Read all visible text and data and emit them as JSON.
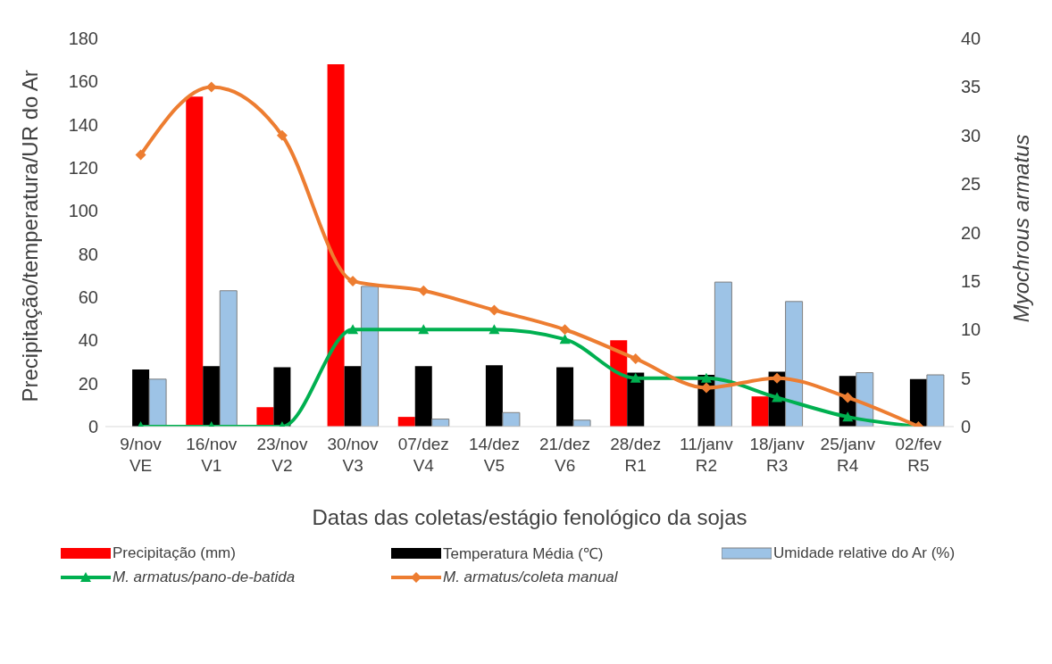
{
  "chart_data": {
    "type": "bar",
    "xlabel": "Datas das coletas/estágio fenológico da sojas",
    "ylabel": "Precipitação/temperatura/UR do Ar",
    "y2label": "Myochrous  armatus",
    "categories": [
      "9/nov\nVE",
      "16/nov\nV1",
      "23/nov\nV2",
      "30/nov\nV3",
      "07/dez\nV4",
      "14/dez\nV5",
      "21/dez\nV6",
      "28/dez\nR1",
      "11/janv\nR2",
      "18/janv\nR3",
      "25/janv\nR4",
      "02/fev\nR5"
    ],
    "series": [
      {
        "name": "Precipitação (mm)",
        "color": "#ff0000",
        "values": [
          0,
          153,
          9,
          168,
          4.5,
          0,
          0,
          40,
          0,
          14,
          0,
          0
        ]
      },
      {
        "name": "Temperatura Média (℃)",
        "color": "#000000",
        "values": [
          26.5,
          28,
          27.5,
          28,
          28,
          28.5,
          27.5,
          25,
          24,
          25.5,
          23.5,
          22
        ]
      },
      {
        "name": "Umidade relative do Ar (%)",
        "color": "#9dc3e6",
        "values": [
          22,
          63,
          0,
          65,
          3.5,
          6.5,
          3,
          0,
          67,
          58,
          25,
          24
        ]
      },
      {
        "name": "M. armatus/pano-de-batida",
        "type": "line",
        "axis": "y2",
        "marker": "triangle",
        "color": "#00b050",
        "values": [
          0,
          0,
          0,
          10,
          10,
          10,
          9,
          5,
          5,
          3,
          1,
          0
        ]
      },
      {
        "name": "M. armatus/coleta manual",
        "type": "line",
        "axis": "y2",
        "marker": "diamond",
        "color": "#ed7d31",
        "values": [
          28,
          35,
          30,
          15,
          14,
          12,
          10,
          7,
          4,
          5,
          3,
          0
        ]
      }
    ],
    "ylim": [
      0,
      180
    ],
    "yticks": [
      0,
      20,
      40,
      60,
      80,
      100,
      120,
      140,
      160,
      180
    ],
    "y2lim": [
      0,
      40
    ],
    "y2ticks": [
      0,
      5,
      10,
      15,
      20,
      25,
      30,
      35,
      40
    ],
    "grid": false,
    "legend": "bottom"
  }
}
